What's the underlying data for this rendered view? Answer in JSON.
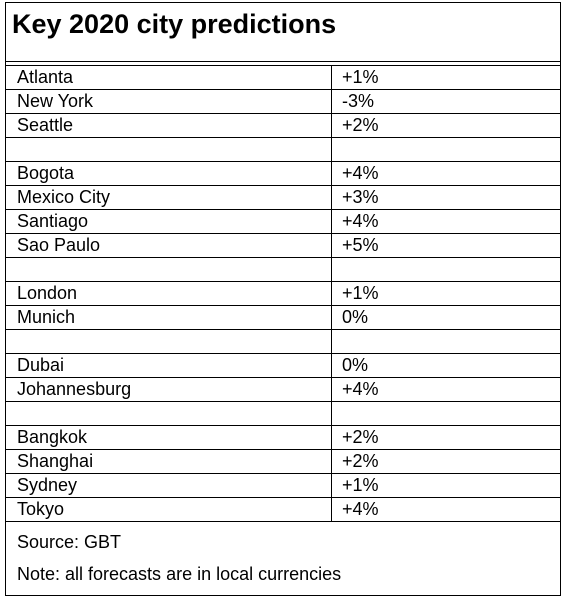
{
  "title": "Key 2020 city predictions",
  "rows": [
    {
      "city": "Atlanta",
      "value": "+1%"
    },
    {
      "city": "New York",
      "value": "-3%"
    },
    {
      "city": "Seattle",
      "value": "+2%"
    },
    {
      "city": "",
      "value": ""
    },
    {
      "city": "Bogota",
      "value": "+4%"
    },
    {
      "city": "Mexico City",
      "value": "+3%"
    },
    {
      "city": "Santiago",
      "value": "+4%"
    },
    {
      "city": "Sao Paulo",
      "value": "+5%"
    },
    {
      "city": "",
      "value": ""
    },
    {
      "city": "London",
      "value": "+1%"
    },
    {
      "city": "Munich",
      "value": "0%"
    },
    {
      "city": "",
      "value": ""
    },
    {
      "city": "Dubai",
      "value": "0%"
    },
    {
      "city": "Johannesburg",
      "value": "+4%"
    },
    {
      "city": "",
      "value": ""
    },
    {
      "city": "Bangkok",
      "value": "+2%"
    },
    {
      "city": "Shanghai",
      "value": "+2%"
    },
    {
      "city": "Sydney",
      "value": "+1%"
    },
    {
      "city": "Tokyo",
      "value": "+4%"
    }
  ],
  "footer": {
    "source": "Source: GBT",
    "note": "Note: all forecasts are in local currencies"
  }
}
